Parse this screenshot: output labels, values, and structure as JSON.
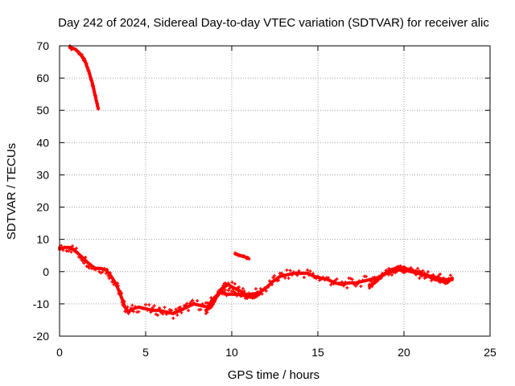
{
  "colors": {
    "series": "#ff0000",
    "grid": "#a0a0a0",
    "axis": "#000000",
    "background": "#ffffff"
  },
  "chart_data": {
    "type": "scatter",
    "title": "Day 242 of 2024, Sidereal Day-to-day VTEC variation (SDTVAR) for receiver alic",
    "xlabel": "GPS time / hours",
    "ylabel": "SDTVAR / TECUs",
    "xlim": [
      0,
      25
    ],
    "ylim": [
      -20,
      70
    ],
    "xticks": [
      0,
      5,
      10,
      15,
      20,
      25
    ],
    "yticks": [
      -20,
      -10,
      0,
      10,
      20,
      30,
      40,
      50,
      60,
      70
    ],
    "grid": true,
    "legend": "none",
    "series": [
      {
        "name": "SDTVAR",
        "points": [
          [
            0.6,
            69.5
          ],
          [
            0.9,
            69
          ],
          [
            1.2,
            67.5
          ],
          [
            1.5,
            65
          ],
          [
            1.7,
            62
          ],
          [
            1.9,
            58.5
          ],
          [
            2.05,
            55
          ],
          [
            2.2,
            51.5
          ],
          [
            2.25,
            50.5
          ]
        ],
        "spread": 0.6
      },
      {
        "name": "SDTVAR",
        "points": [
          [
            0,
            7
          ],
          [
            0.3,
            7.5
          ],
          [
            0.6,
            7.5
          ],
          [
            0.9,
            6.5
          ],
          [
            1.2,
            5
          ],
          [
            1.5,
            3.5
          ],
          [
            1.8,
            2
          ],
          [
            2.1,
            1
          ],
          [
            2.4,
            1
          ],
          [
            2.7,
            0.5
          ],
          [
            3.0,
            -1.5
          ],
          [
            3.3,
            -4
          ],
          [
            3.6,
            -8
          ],
          [
            3.8,
            -11
          ],
          [
            4.0,
            -12.5
          ],
          [
            4.3,
            -11.5
          ],
          [
            4.6,
            -11
          ],
          [
            5.0,
            -11.5
          ],
          [
            5.4,
            -12
          ],
          [
            5.8,
            -12
          ],
          [
            6.2,
            -12.5
          ],
          [
            6.6,
            -13
          ],
          [
            7.0,
            -12
          ],
          [
            7.4,
            -11
          ],
          [
            7.8,
            -10
          ],
          [
            8.2,
            -10.5
          ],
          [
            8.6,
            -11
          ],
          [
            8.9,
            -8.5
          ],
          [
            9.2,
            -7
          ],
          [
            9.5,
            -5
          ],
          [
            9.8,
            -4
          ],
          [
            10.1,
            -5
          ],
          [
            10.5,
            -6
          ],
          [
            10.8,
            -7
          ],
          [
            11.2,
            -7
          ],
          [
            11.6,
            -6.5
          ],
          [
            12.0,
            -5
          ],
          [
            12.4,
            -3
          ],
          [
            12.8,
            -1.5
          ],
          [
            13.2,
            -1
          ],
          [
            13.6,
            -0.5
          ],
          [
            14.0,
            -0.5
          ],
          [
            14.4,
            -0.5
          ],
          [
            14.8,
            -1.5
          ],
          [
            15.2,
            -2
          ],
          [
            15.6,
            -2.5
          ],
          [
            16.0,
            -3.5
          ],
          [
            16.4,
            -4
          ],
          [
            16.8,
            -3.5
          ],
          [
            17.2,
            -3.5
          ],
          [
            17.6,
            -3
          ],
          [
            18.0,
            -2.5
          ],
          [
            18.4,
            -2
          ],
          [
            18.8,
            -1
          ],
          [
            19.2,
            0
          ],
          [
            19.6,
            0.5
          ],
          [
            20.0,
            0.5
          ],
          [
            20.4,
            0
          ],
          [
            20.8,
            -0.5
          ],
          [
            21.2,
            -1
          ],
          [
            21.6,
            -1.5
          ],
          [
            22.0,
            -2
          ],
          [
            22.4,
            -2.5
          ],
          [
            22.8,
            -2.5
          ]
        ],
        "spread": 1.5
      },
      {
        "name": "SDTVAR",
        "points": [
          [
            8.5,
            -12
          ],
          [
            8.8,
            -11
          ],
          [
            9.1,
            -8
          ],
          [
            9.4,
            -6
          ],
          [
            9.7,
            -7
          ],
          [
            10.0,
            -7
          ],
          [
            10.4,
            -7
          ],
          [
            10.8,
            -7.5
          ],
          [
            11.2,
            -8
          ],
          [
            11.6,
            -7
          ]
        ],
        "spread": 1.2
      },
      {
        "name": "SDTVAR",
        "points": [
          [
            10.2,
            5.5
          ],
          [
            10.5,
            5
          ],
          [
            10.8,
            4.5
          ],
          [
            11.0,
            4
          ]
        ],
        "spread": 0.4
      },
      {
        "name": "SDTVAR",
        "points": [
          [
            18.0,
            -4.5
          ],
          [
            18.3,
            -3.5
          ],
          [
            18.6,
            -2
          ],
          [
            18.9,
            -0.5
          ],
          [
            19.2,
            0.5
          ],
          [
            19.5,
            1
          ],
          [
            19.8,
            1
          ],
          [
            20.1,
            1
          ],
          [
            20.4,
            0.5
          ],
          [
            20.7,
            0
          ],
          [
            21.0,
            -0.5
          ],
          [
            21.3,
            -1
          ],
          [
            21.6,
            -2
          ],
          [
            21.9,
            -2.5
          ],
          [
            22.2,
            -3
          ],
          [
            22.5,
            -3.5
          ],
          [
            22.8,
            -2
          ]
        ],
        "spread": 0.8
      }
    ]
  }
}
